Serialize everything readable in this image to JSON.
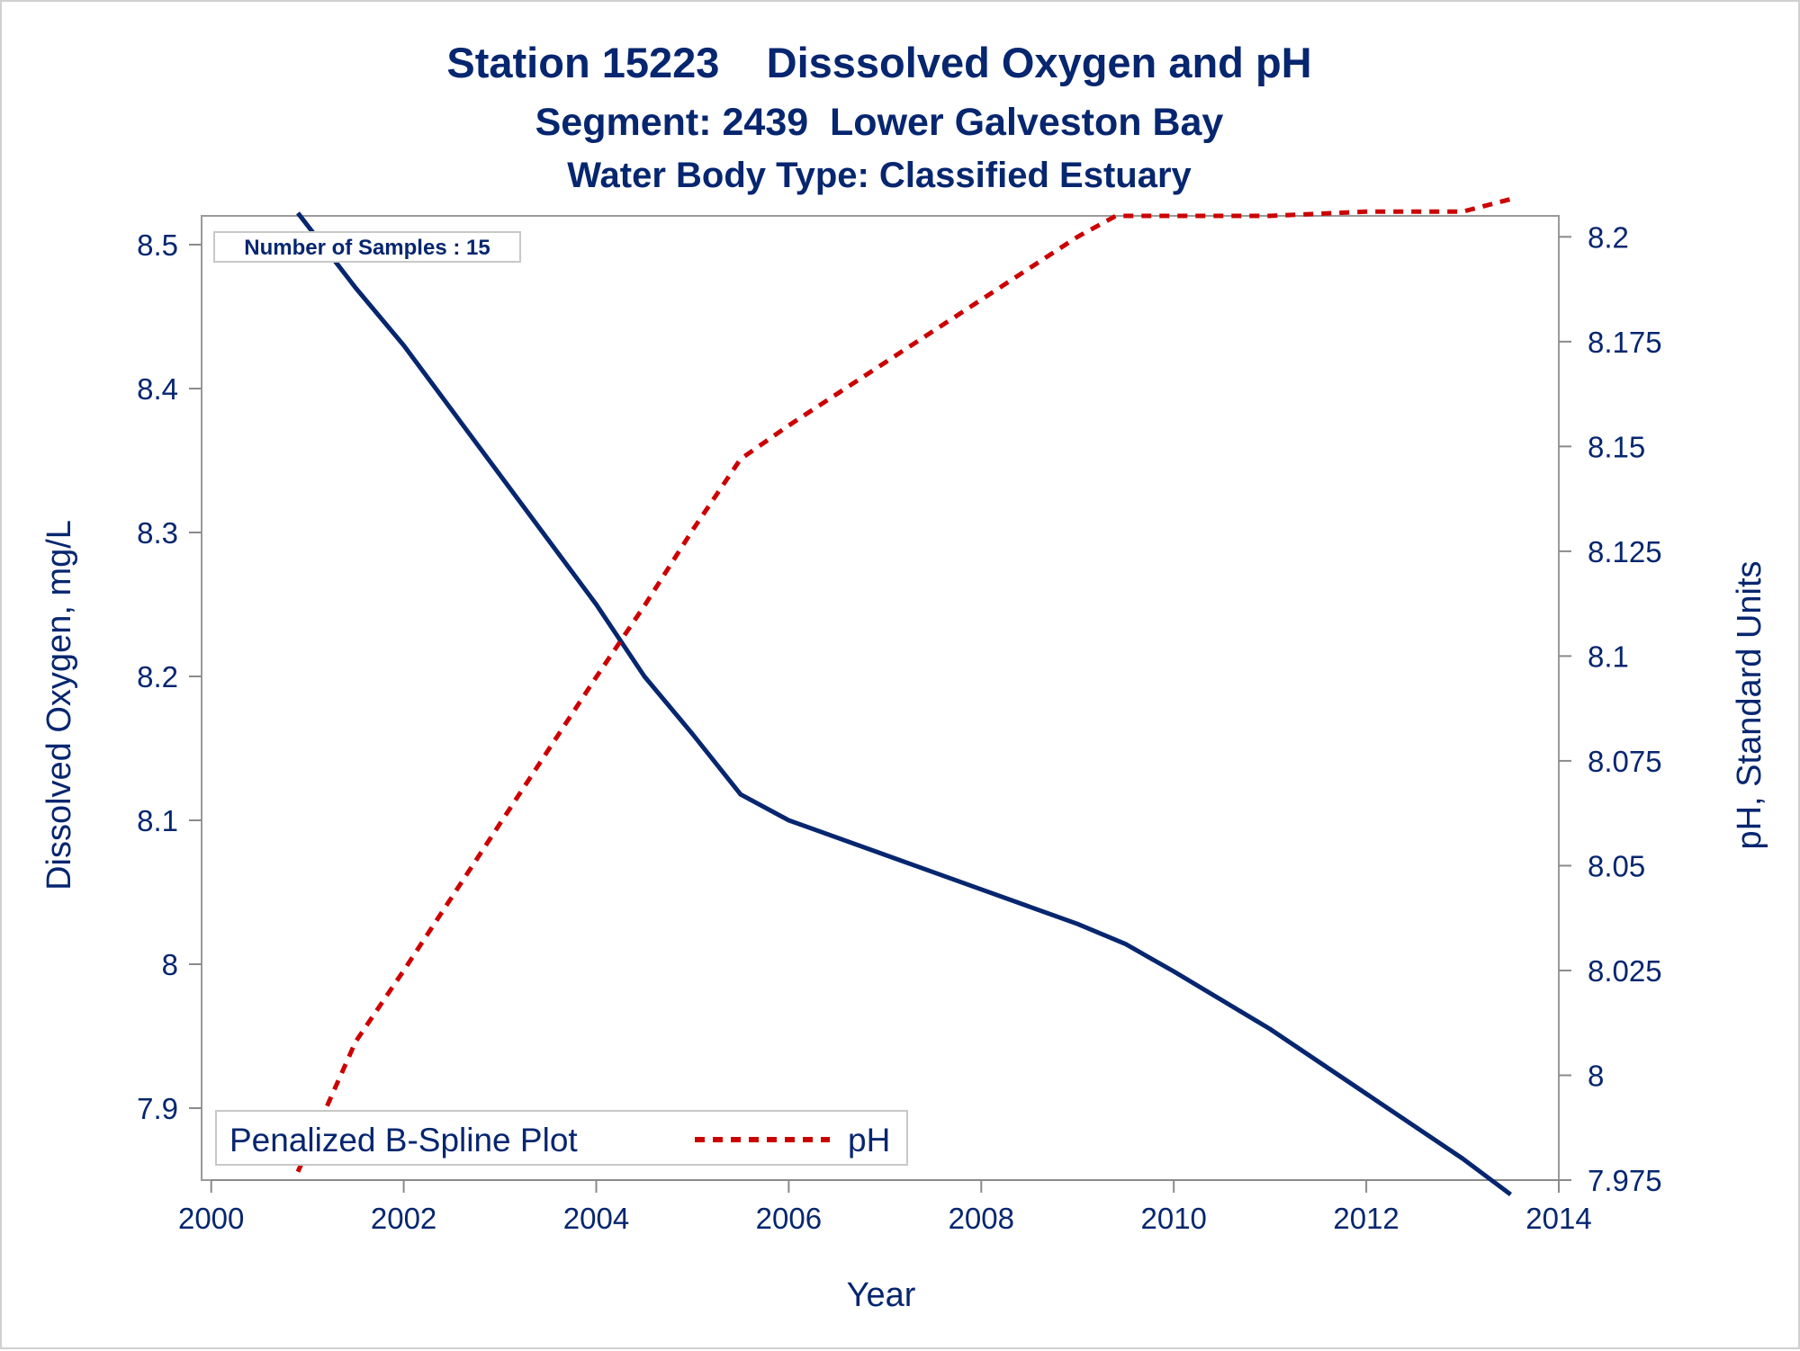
{
  "chart_data": {
    "type": "line",
    "title": "Station 15223    Disssolved Oxygen and pH",
    "subtitle": "Segment: 2439  Lower Galveston Bay",
    "subtitle2": "Water Body Type: Classified Estuary",
    "xlabel": "Year",
    "ylabel": "Dissolved Oxygen, mg/L",
    "y2label": "pH, Standard Units",
    "xlim": [
      1999.9,
      2014.0
    ],
    "ylim": [
      7.85,
      8.52
    ],
    "y2lim": [
      7.975,
      8.205
    ],
    "x_ticks": [
      2000,
      2002,
      2004,
      2006,
      2008,
      2010,
      2012,
      2014
    ],
    "y_ticks": [
      7.9,
      8,
      8.1,
      8.2,
      8.3,
      8.4,
      8.5
    ],
    "y2_ticks": [
      7.975,
      8,
      8.025,
      8.05,
      8.075,
      8.1,
      8.125,
      8.15,
      8.175,
      8.2
    ],
    "inset_label": "Number of Samples : 15",
    "legend_title": "Penalized B-Spline Plot",
    "legend_position": "bottom-left",
    "grid": false,
    "series": [
      {
        "name": "",
        "axis": "left",
        "color": "#06266f",
        "dash": "solid",
        "x": [
          2000.9,
          2001.5,
          2002.0,
          2003.0,
          2004.0,
          2004.5,
          2005.0,
          2005.5,
          2006.0,
          2007.0,
          2008.0,
          2009.0,
          2009.5,
          2010.0,
          2011.0,
          2012.0,
          2013.0,
          2013.5
        ],
        "y": [
          8.522,
          8.47,
          8.43,
          8.34,
          8.25,
          8.2,
          8.16,
          8.118,
          8.1,
          8.076,
          8.052,
          8.028,
          8.014,
          7.995,
          7.955,
          7.91,
          7.865,
          7.84
        ]
      },
      {
        "name": "pH",
        "axis": "right",
        "color": "#cc0000",
        "dash": "dotted",
        "x": [
          2000.9,
          2001.5,
          2002.0,
          2003.0,
          2004.0,
          2004.5,
          2005.0,
          2005.5,
          2006.0,
          2007.0,
          2008.0,
          2009.0,
          2009.4,
          2010.0,
          2011.0,
          2012.0,
          2013.0,
          2013.5
        ],
        "y": [
          7.977,
          8.008,
          8.025,
          8.06,
          8.095,
          8.112,
          8.13,
          8.147,
          8.155,
          8.17,
          8.185,
          8.2,
          8.205,
          8.205,
          8.205,
          8.206,
          8.206,
          8.209
        ]
      }
    ]
  }
}
